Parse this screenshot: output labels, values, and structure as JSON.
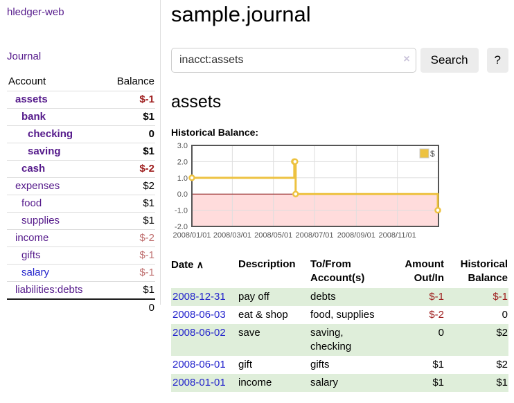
{
  "app": {
    "brand": "hledger-web",
    "nav_journal": "Journal"
  },
  "page": {
    "title": "sample.journal"
  },
  "search": {
    "value": "inacct:assets",
    "clear_icon": "×",
    "search_button": "Search",
    "help_button": "?"
  },
  "account_view": {
    "heading": "assets",
    "chart_title": "Historical Balance:"
  },
  "sidebar": {
    "headers": {
      "account": "Account",
      "balance": "Balance"
    },
    "accounts": [
      {
        "name": "assets",
        "balance": "$-1",
        "depth": 1,
        "bold": true,
        "neg": "strong"
      },
      {
        "name": "bank",
        "balance": "$1",
        "depth": 2,
        "bold": true,
        "neg": "none"
      },
      {
        "name": "checking",
        "balance": "0",
        "depth": 3,
        "bold": true,
        "neg": "none"
      },
      {
        "name": "saving",
        "balance": "$1",
        "depth": 3,
        "bold": true,
        "neg": "none"
      },
      {
        "name": "cash",
        "balance": "$-2",
        "depth": 2,
        "bold": true,
        "neg": "strong"
      },
      {
        "name": "expenses",
        "balance": "$2",
        "depth": 1,
        "bold": false,
        "neg": "none"
      },
      {
        "name": "food",
        "balance": "$1",
        "depth": 2,
        "bold": false,
        "neg": "none"
      },
      {
        "name": "supplies",
        "balance": "$1",
        "depth": 2,
        "bold": false,
        "neg": "none"
      },
      {
        "name": "income",
        "balance": "$-2",
        "depth": 1,
        "bold": false,
        "neg": "faded"
      },
      {
        "name": "gifts",
        "balance": "$-1",
        "depth": 2,
        "bold": false,
        "neg": "faded"
      },
      {
        "name": "salary",
        "balance": "$-1",
        "depth": 2,
        "bold": false,
        "neg": "faded",
        "link": "blue"
      },
      {
        "name": "liabilities:debts",
        "balance": "$1",
        "depth": 1,
        "bold": false,
        "neg": "none"
      }
    ],
    "total": "0"
  },
  "chart_data": {
    "type": "line",
    "style": "step",
    "title": "Historical Balance",
    "series": [
      {
        "name": "$",
        "color": "#edc240",
        "points": [
          {
            "date": "2008-01-01",
            "value": 1
          },
          {
            "date": "2008-06-01",
            "value": 2
          },
          {
            "date": "2008-06-02",
            "value": 2
          },
          {
            "date": "2008-06-03",
            "value": 0
          },
          {
            "date": "2008-12-31",
            "value": -1
          }
        ]
      }
    ],
    "x_ticks": [
      "2008/01/01",
      "2008/03/01",
      "2008/05/01",
      "2008/07/01",
      "2008/09/01",
      "2008/11/01"
    ],
    "y_ticks": [
      3.0,
      2.0,
      1.0,
      0.0,
      -1.0,
      -2.0
    ],
    "ylim": [
      -2,
      3
    ],
    "xlim": [
      "2008-01-01",
      "2009-01-01"
    ],
    "grid": true,
    "legend": {
      "label": "$",
      "position": "top-right"
    },
    "negative_region_color": "#ffdcdc",
    "zero_line_color": "#7d0000"
  },
  "register": {
    "columns": [
      "Date",
      "Description",
      "To/From\nAccount(s)",
      "Amount\nOut/In",
      "Historical\nBalance"
    ],
    "sort_icon": "∧",
    "rows": [
      {
        "date": "2008-12-31",
        "description": "pay off",
        "accounts": "debts",
        "amount": "$-1",
        "amount_negative": true,
        "balance": "$-1",
        "balance_negative": true,
        "shaded": true
      },
      {
        "date": "2008-06-03",
        "description": "eat & shop",
        "accounts": "food, supplies",
        "amount": "$-2",
        "amount_negative": true,
        "balance": "0",
        "balance_negative": false,
        "shaded": false
      },
      {
        "date": "2008-06-02",
        "description": "save",
        "accounts": "saving,\nchecking",
        "amount": "0",
        "amount_negative": false,
        "balance": "$2",
        "balance_negative": false,
        "shaded": true
      },
      {
        "date": "2008-06-01",
        "description": "gift",
        "accounts": "gifts",
        "amount": "$1",
        "amount_negative": false,
        "balance": "$2",
        "balance_negative": false,
        "shaded": false
      },
      {
        "date": "2008-01-01",
        "description": "income",
        "accounts": "salary",
        "amount": "$1",
        "amount_negative": false,
        "balance": "$1",
        "balance_negative": false,
        "shaded": true
      }
    ]
  },
  "colors": {
    "link_purple": "#551a8b",
    "link_blue": "#2323cc",
    "negative_strong": "#9d1b1b",
    "negative_faded": "#bf6f6f",
    "row_shade_green": "#dfeeda",
    "series_gold": "#edc240",
    "negative_region_pink": "#ffdcdc",
    "zero_line_dark_red": "#7d0000",
    "button_gray": "#ececec"
  }
}
